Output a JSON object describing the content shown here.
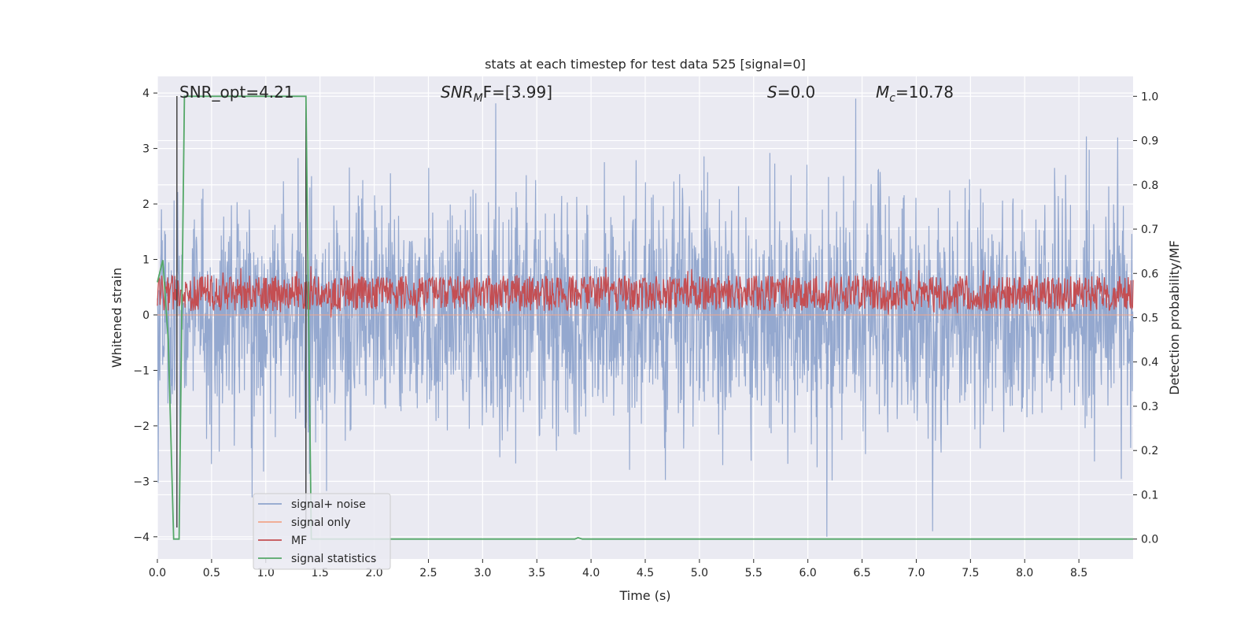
{
  "chart_data": {
    "type": "line",
    "title": "stats at each timestep for test data 525 [signal=0]",
    "xlabel": "Time (s)",
    "ylabel_left": "Whitened strain",
    "ylabel_right": "Detection probability/MF",
    "xlim": [
      0.0,
      9.0
    ],
    "ylim_left": [
      -4.4,
      4.3
    ],
    "ylim_right": [
      -0.045,
      1.045
    ],
    "x_ticks": [
      "0.0",
      "0.5",
      "1.0",
      "1.5",
      "2.0",
      "2.5",
      "3.0",
      "3.5",
      "4.0",
      "4.5",
      "5.0",
      "5.5",
      "6.0",
      "6.5",
      "7.0",
      "7.5",
      "8.0",
      "8.5"
    ],
    "y_ticks_left": [
      "4",
      "3",
      "2",
      "1",
      "0",
      "−1",
      "−2",
      "−3",
      "−4"
    ],
    "y_ticks_right": [
      "1.0",
      "0.9",
      "0.8",
      "0.7",
      "0.6",
      "0.5",
      "0.4",
      "0.3",
      "0.2",
      "0.1",
      "0.0"
    ],
    "grid": true,
    "legend_position": "bottom-left",
    "annotations": {
      "snr_opt": "SNR_opt=4.21",
      "snr_mf": "SNR",
      "snr_mf_sub": "M",
      "snr_mf_rest": "F=[3.99]",
      "s_label": "S",
      "s_value": "=0.0",
      "mc_label": "M",
      "mc_sub": "c",
      "mc_value": "=10.78"
    },
    "series": [
      {
        "name": "signal+ noise",
        "axis": "left",
        "color": "#8fa4cc",
        "description_level": {
          "range": [
            -4.0,
            3.9
          ],
          "envelope": 1.6
        }
      },
      {
        "name": "signal only",
        "axis": "left",
        "color": "#f0a58a",
        "values_constant": 0.0
      },
      {
        "name": "MF",
        "axis": "right",
        "color": "#c44e52",
        "range": [
          0.5,
          0.62
        ]
      },
      {
        "name": "signal statistics",
        "axis": "right",
        "color": "#55a868",
        "x": [
          0.0,
          0.05,
          0.1,
          0.15,
          0.2,
          0.25,
          1.37,
          1.42,
          3.85,
          3.88,
          3.92,
          9.0
        ],
        "y": [
          0.58,
          0.63,
          0.45,
          0.0,
          0.0,
          1.0,
          1.0,
          0.0,
          0.0,
          0.003,
          0.0,
          0.0
        ]
      }
    ],
    "vertical_markers": [
      {
        "x": 0.18,
        "color": "#444444"
      },
      {
        "x": 1.37,
        "color": "#444444"
      }
    ]
  }
}
